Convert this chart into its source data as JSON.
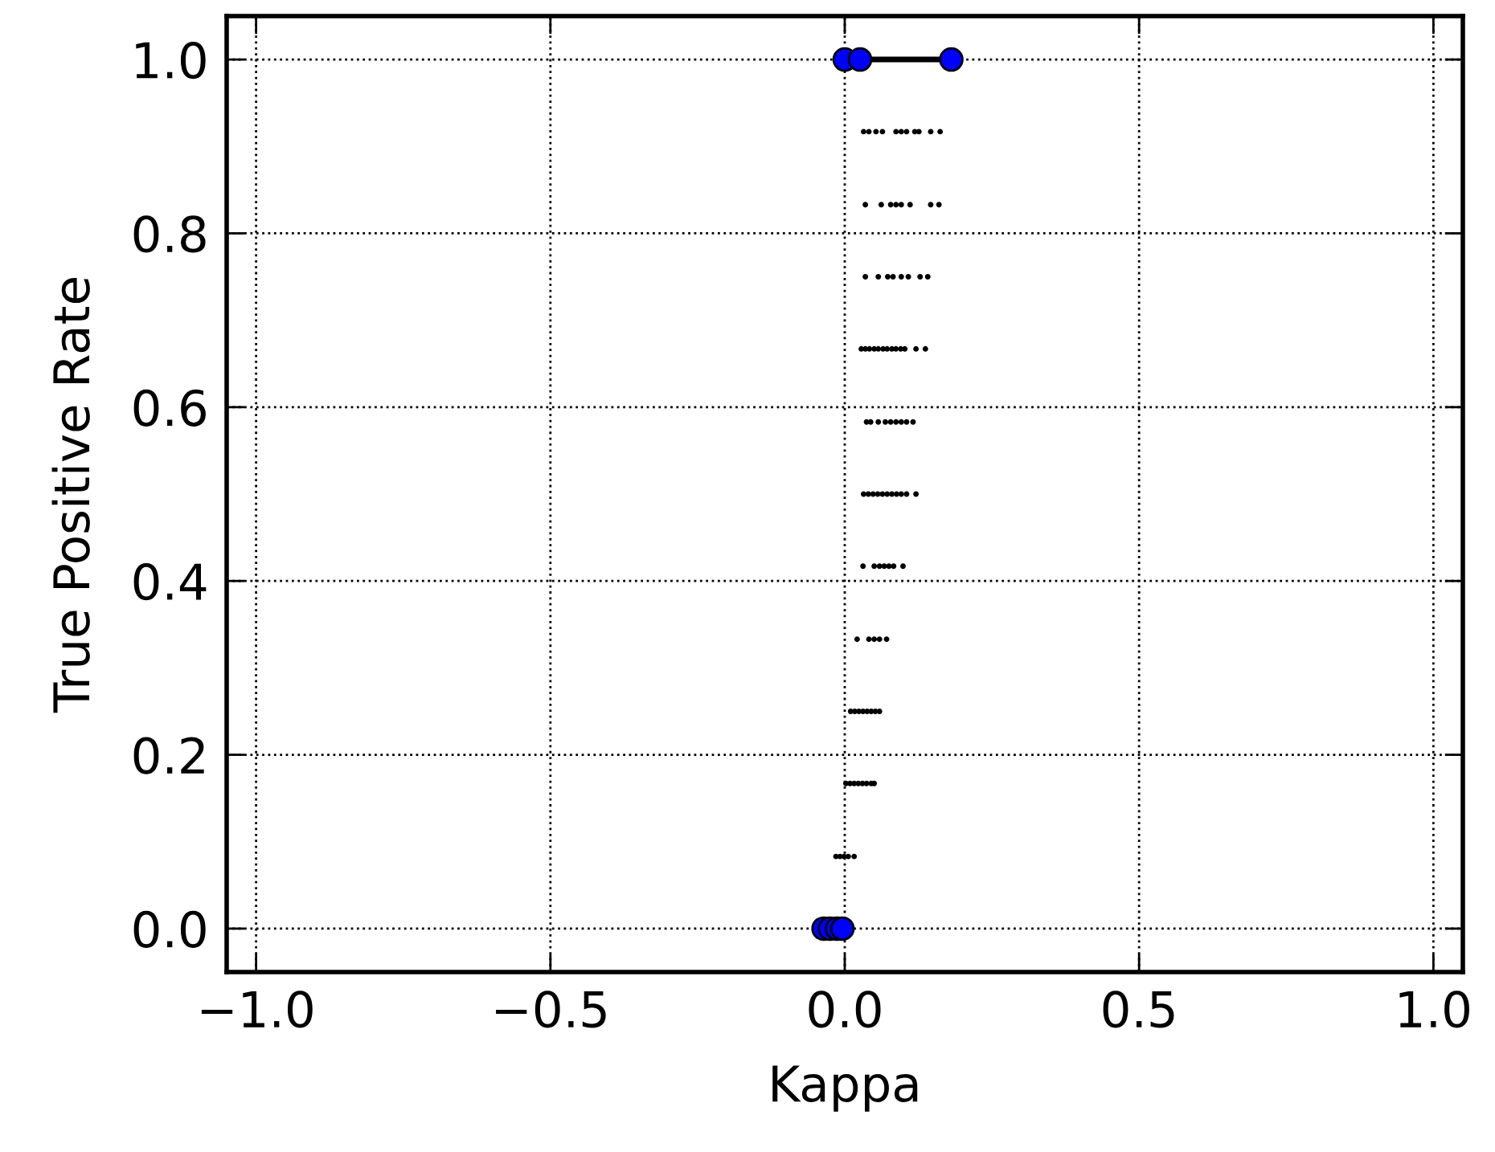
{
  "chart_data": {
    "type": "scatter",
    "xlabel": "Kappa",
    "ylabel": "True Positive Rate",
    "xlim": [
      -1.05,
      1.05
    ],
    "ylim": [
      -0.05,
      1.05
    ],
    "xticks": [
      {
        "value": -1.0,
        "label": "−1.0"
      },
      {
        "value": -0.5,
        "label": "−0.5"
      },
      {
        "value": 0.0,
        "label": "0.0"
      },
      {
        "value": 0.5,
        "label": "0.5"
      },
      {
        "value": 1.0,
        "label": "1.0"
      }
    ],
    "yticks": [
      {
        "value": 0.0,
        "label": "0.0"
      },
      {
        "value": 0.2,
        "label": "0.2"
      },
      {
        "value": 0.4,
        "label": "0.4"
      },
      {
        "value": 0.6,
        "label": "0.6"
      },
      {
        "value": 0.8,
        "label": "0.8"
      },
      {
        "value": 1.0,
        "label": "1.0"
      }
    ],
    "grid": true,
    "series": [
      {
        "color": "#000000",
        "marker": "circle",
        "x": [
          0.032,
          0.041,
          0.053,
          0.064,
          0.087,
          0.096,
          0.105,
          0.119,
          0.126,
          0.146,
          0.162,
          0.035,
          0.062,
          0.078,
          0.087,
          0.096,
          0.111,
          0.146,
          0.16,
          0.035,
          0.057,
          0.073,
          0.082,
          0.096,
          0.108,
          0.128,
          0.141,
          0.028,
          0.035,
          0.042,
          0.05,
          0.057,
          0.065,
          0.072,
          0.08,
          0.087,
          0.095,
          0.102,
          0.121,
          0.137,
          0.037,
          0.044,
          0.057,
          0.069,
          0.078,
          0.087,
          0.096,
          0.105,
          0.116,
          0.032,
          0.04,
          0.048,
          0.056,
          0.064,
          0.072,
          0.08,
          0.088,
          0.096,
          0.105,
          0.121,
          0.031,
          0.05,
          0.059,
          0.067,
          0.075,
          0.083,
          0.099,
          0.021,
          0.041,
          0.05,
          0.059,
          0.071,
          0.01,
          0.017,
          0.024,
          0.031,
          0.038,
          0.045,
          0.052,
          0.059,
          0.002,
          0.009,
          0.016,
          0.023,
          0.03,
          0.037,
          0.045,
          0.05,
          -0.015,
          -0.008,
          -0.001,
          0.006,
          0.016
        ],
        "values": [
          0.917,
          0.917,
          0.917,
          0.917,
          0.917,
          0.917,
          0.917,
          0.917,
          0.917,
          0.917,
          0.917,
          0.833,
          0.833,
          0.833,
          0.833,
          0.833,
          0.833,
          0.833,
          0.833,
          0.75,
          0.75,
          0.75,
          0.75,
          0.75,
          0.75,
          0.75,
          0.75,
          0.667,
          0.667,
          0.667,
          0.667,
          0.667,
          0.667,
          0.667,
          0.667,
          0.667,
          0.667,
          0.667,
          0.667,
          0.667,
          0.583,
          0.583,
          0.583,
          0.583,
          0.583,
          0.583,
          0.583,
          0.583,
          0.583,
          0.5,
          0.5,
          0.5,
          0.5,
          0.5,
          0.5,
          0.5,
          0.5,
          0.5,
          0.5,
          0.5,
          0.417,
          0.417,
          0.417,
          0.417,
          0.417,
          0.417,
          0.417,
          0.333,
          0.333,
          0.333,
          0.333,
          0.333,
          0.25,
          0.25,
          0.25,
          0.25,
          0.25,
          0.25,
          0.25,
          0.25,
          0.167,
          0.167,
          0.167,
          0.167,
          0.167,
          0.167,
          0.167,
          0.167,
          0.083,
          0.083,
          0.083,
          0.083,
          0.083
        ]
      },
      {
        "type": "line",
        "color": "#000000",
        "marker": "none",
        "line_style": "solid",
        "x": [
          0.026,
          0.181
        ],
        "values": [
          1.0,
          1.0
        ]
      },
      {
        "color": "#0000ff",
        "marker": "circle",
        "x": [
          0.0,
          0.026,
          0.181,
          -0.036,
          -0.025,
          -0.013,
          -0.004
        ],
        "values": [
          1.0,
          1.0,
          1.0,
          0.0,
          0.0,
          0.0,
          0.0
        ]
      }
    ]
  }
}
